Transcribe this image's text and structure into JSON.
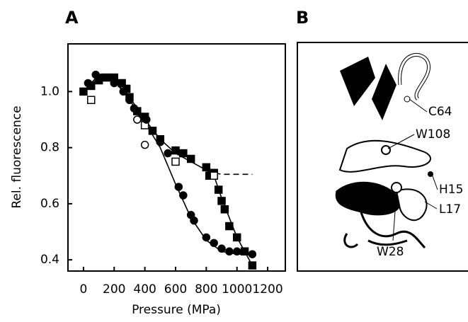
{
  "chart_data": {
    "type": "scatter",
    "panel_label": "A",
    "xlabel": "Pressure (MPa)",
    "ylabel": "Rel. fluorescence",
    "xlim": [
      -101,
      1315
    ],
    "ylim": [
      0.36,
      1.17
    ],
    "xticks": [
      0,
      200,
      400,
      600,
      800,
      1000,
      1200
    ],
    "yticks": [
      0.4,
      0.6,
      0.8,
      {
        "value": 1,
        "label": "1.0"
      }
    ],
    "color": "#000000",
    "series": [
      {
        "marker": "square",
        "filled": true,
        "x": [
          0,
          50,
          100,
          150,
          200,
          250,
          280,
          300,
          350,
          400,
          450,
          500,
          600,
          650,
          700,
          800,
          820,
          850,
          880,
          900,
          920,
          950,
          1000,
          1050,
          1100
        ],
        "y": [
          1.0,
          1.02,
          1.04,
          1.05,
          1.05,
          1.03,
          1.01,
          0.98,
          0.93,
          0.91,
          0.86,
          0.83,
          0.79,
          0.78,
          0.76,
          0.73,
          0.7,
          0.71,
          0.65,
          0.61,
          0.58,
          0.52,
          0.48,
          0.43,
          0.38
        ]
      },
      {
        "marker": "square",
        "filled": false,
        "x": [
          50,
          400,
          600,
          850
        ],
        "y": [
          0.97,
          0.88,
          0.75,
          0.7
        ]
      },
      {
        "marker": "circle",
        "filled": true,
        "x": [
          30,
          80,
          120,
          200,
          260,
          300,
          330,
          380,
          410,
          450,
          500,
          550,
          620,
          650,
          700,
          720,
          800,
          850,
          900,
          950,
          1000,
          1100
        ],
        "y": [
          1.03,
          1.06,
          1.05,
          1.03,
          1.0,
          0.97,
          0.94,
          0.91,
          0.9,
          0.86,
          0.82,
          0.78,
          0.66,
          0.63,
          0.56,
          0.54,
          0.48,
          0.46,
          0.44,
          0.43,
          0.43,
          0.42
        ]
      },
      {
        "marker": "circle",
        "filled": false,
        "x": [
          350,
          400
        ],
        "y": [
          0.9,
          0.81
        ]
      }
    ],
    "lines": [
      {
        "dashed": false,
        "x": [
          0,
          100,
          200,
          300,
          400,
          500,
          600,
          700,
          800,
          900,
          1000,
          1120
        ],
        "y": [
          1.0,
          1.06,
          1.04,
          0.97,
          0.89,
          0.8,
          0.67,
          0.55,
          0.47,
          0.43,
          0.42,
          0.42
        ]
      },
      {
        "dashed": false,
        "x": [
          0,
          100,
          200,
          300,
          400,
          500,
          600,
          700,
          800,
          850,
          900,
          1000,
          1100
        ],
        "y": [
          1.0,
          1.05,
          1.04,
          0.98,
          0.9,
          0.83,
          0.78,
          0.75,
          0.72,
          0.7,
          0.62,
          0.48,
          0.38
        ]
      },
      {
        "dashed": true,
        "x": [
          800,
          850,
          900,
          1000,
          1100
        ],
        "y": [
          0.72,
          0.71,
          0.705,
          0.705,
          0.705
        ]
      }
    ]
  },
  "figure_b": {
    "panel_label": "B",
    "labels": [
      "C64",
      "W108",
      "H15",
      "L17",
      "W28"
    ]
  }
}
